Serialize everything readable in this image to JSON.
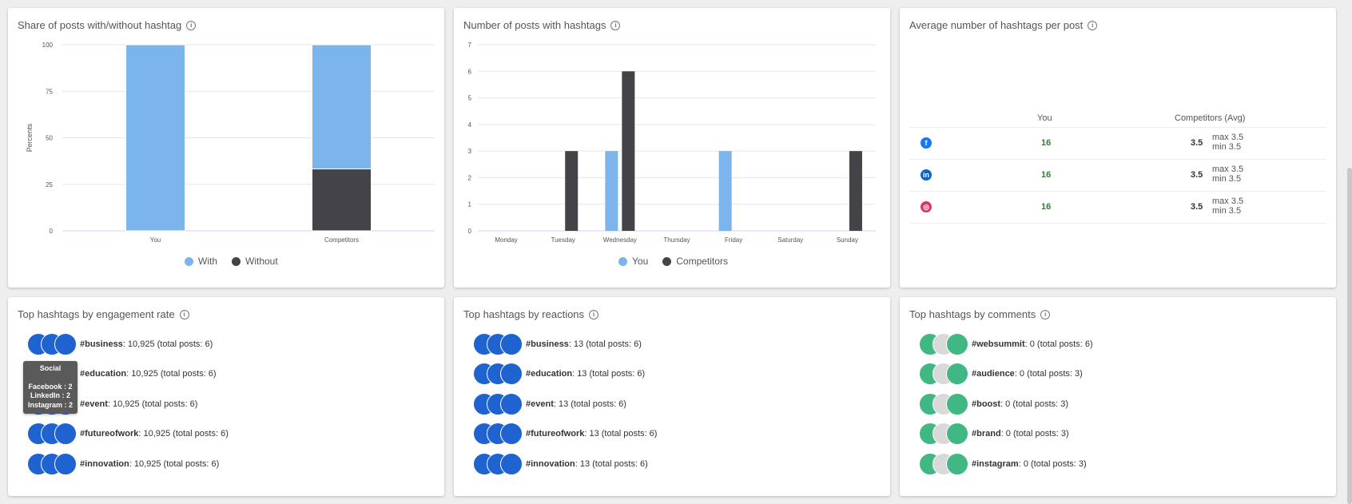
{
  "colors": {
    "you": "#7cb4ec",
    "competitors": "#434348",
    "positive": "#2e7d32",
    "grid": "#e6e6e6"
  },
  "card1": {
    "title": "Share of posts with/without hashtag",
    "legend": [
      {
        "label": "With",
        "color": "#7cb4ec"
      },
      {
        "label": "Without",
        "color": "#434348"
      }
    ],
    "chart_data": {
      "type": "bar",
      "stacked": true,
      "categories": [
        "You",
        "Competitors"
      ],
      "series": [
        {
          "name": "Without",
          "values": [
            0,
            33.3
          ]
        },
        {
          "name": "With",
          "values": [
            100,
            66.7
          ]
        }
      ],
      "ylabel": "Percents",
      "ylim": [
        0,
        100
      ],
      "yticks": [
        0,
        25,
        50,
        75,
        100
      ],
      "grid": true,
      "legend_position": "bottom"
    }
  },
  "card2": {
    "title": "Number of posts with hashtags",
    "legend": [
      {
        "label": "You",
        "color": "#7cb4ec"
      },
      {
        "label": "Competitors",
        "color": "#434348"
      }
    ],
    "chart_data": {
      "type": "bar",
      "categories": [
        "Monday",
        "Tuesday",
        "Wednesday",
        "Thursday",
        "Friday",
        "Saturday",
        "Sunday"
      ],
      "series": [
        {
          "name": "You",
          "values": [
            0,
            0,
            3,
            0,
            3,
            0,
            0
          ]
        },
        {
          "name": "Competitors",
          "values": [
            0,
            3,
            6,
            0,
            0,
            0,
            3
          ]
        }
      ],
      "ylim": [
        0,
        7
      ],
      "yticks": [
        0,
        1,
        2,
        3,
        4,
        5,
        6,
        7
      ],
      "grid": true,
      "legend_position": "bottom"
    }
  },
  "card3": {
    "title": "Average number of hashtags per post",
    "col_you": "You",
    "col_comp": "Competitors (Avg)",
    "rows": [
      {
        "network": "facebook-icon",
        "glyph": "f",
        "color": "#1877f2",
        "you": "16",
        "comp": "3.5",
        "max": "max 3.5",
        "min": "min 3.5"
      },
      {
        "network": "linkedin-icon",
        "glyph": "in",
        "color": "#0a66c2",
        "you": "16",
        "comp": "3.5",
        "max": "max 3.5",
        "min": "min 3.5"
      },
      {
        "network": "instagram-icon",
        "glyph": "◎",
        "color": "#e1306c",
        "you": "16",
        "comp": "3.5",
        "max": "max 3.5",
        "min": "min 3.5"
      }
    ]
  },
  "card4": {
    "title": "Top hashtags by engagement rate",
    "items": [
      {
        "tag": "#business",
        "rest": ": 10,925 (total posts: 6)"
      },
      {
        "tag": "#education",
        "rest": ": 10,925 (total posts: 6)"
      },
      {
        "tag": "#event",
        "rest": ": 10,925 (total posts: 6)"
      },
      {
        "tag": "#futureofwork",
        "rest": ": 10,925 (total posts: 6)"
      },
      {
        "tag": "#innovation",
        "rest": ": 10,925 (total posts: 6)"
      }
    ],
    "tooltip": {
      "title": "Social",
      "lines": [
        "Facebook : 2",
        "LinkedIn : 2",
        "Instagram : 2"
      ]
    }
  },
  "card5": {
    "title": "Top hashtags by reactions",
    "items": [
      {
        "tag": "#business",
        "rest": ": 13 (total posts: 6)"
      },
      {
        "tag": "#education",
        "rest": ": 13 (total posts: 6)"
      },
      {
        "tag": "#event",
        "rest": ": 13 (total posts: 6)"
      },
      {
        "tag": "#futureofwork",
        "rest": ": 13 (total posts: 6)"
      },
      {
        "tag": "#innovation",
        "rest": ": 13 (total posts: 6)"
      }
    ]
  },
  "card6": {
    "title": "Top hashtags by comments",
    "items": [
      {
        "tag": "#websummit",
        "rest": ": 0 (total posts: 6)"
      },
      {
        "tag": "#audience",
        "rest": ": 0 (total posts: 3)"
      },
      {
        "tag": "#boost",
        "rest": ": 0 (total posts: 3)"
      },
      {
        "tag": "#brand",
        "rest": ": 0 (total posts: 3)"
      },
      {
        "tag": "#instagram",
        "rest": ": 0 (total posts: 3)"
      }
    ]
  }
}
